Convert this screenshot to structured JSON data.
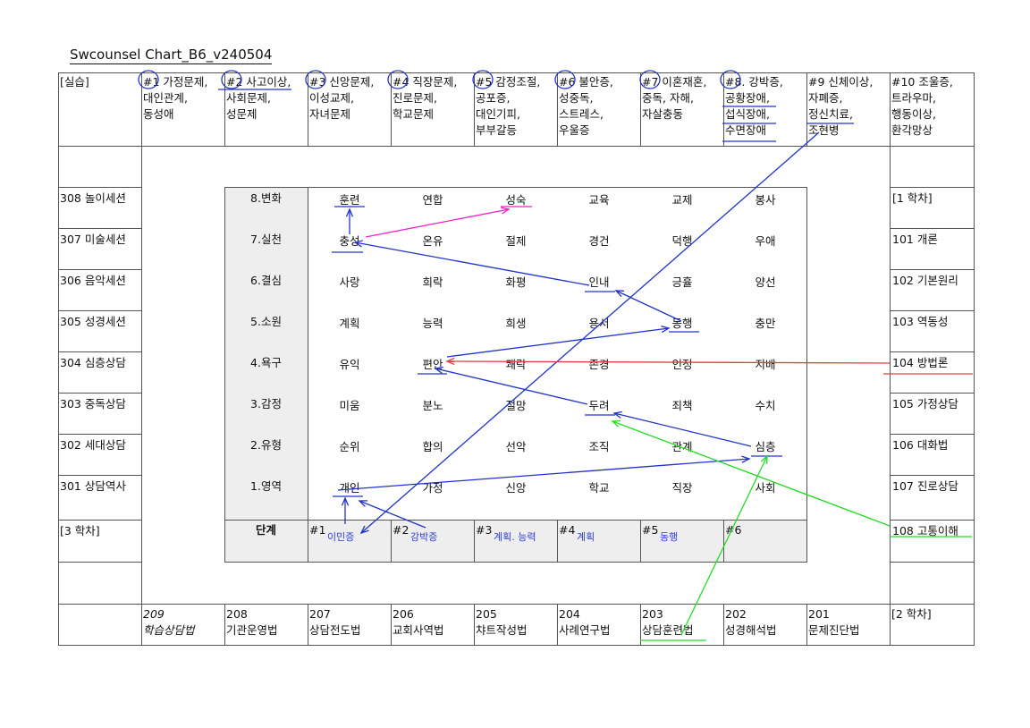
{
  "title": "Swcounsel Chart_B6_v240504",
  "top_row": [
    {
      "lines": [
        "[실습]"
      ]
    },
    {
      "lines": [
        "#1 가정문제,",
        "대인관계,",
        "동성애"
      ]
    },
    {
      "lines": [
        "#2 사고이상,",
        "사회문제,",
        "성문제"
      ]
    },
    {
      "lines": [
        "#3 신앙문제,",
        "이성교제,",
        "자녀문제"
      ]
    },
    {
      "lines": [
        "#4 직장문제,",
        "진로문제,",
        "학교문제"
      ]
    },
    {
      "lines": [
        "#5 감정조절,",
        "공포증,",
        "대인기피,",
        "부부갈등"
      ]
    },
    {
      "lines": [
        "#6 불안증,",
        "성중독,",
        "스트레스,",
        "우울증"
      ]
    },
    {
      "lines": [
        "#7 이혼재혼,",
        "중독, 자해,",
        "자살충동"
      ]
    },
    {
      "lines": [
        "#8. 강박증,",
        "공황장애,",
        "섭식장애,",
        "수면장애"
      ]
    },
    {
      "lines": [
        "#9 신체이상,",
        "자폐증,",
        "정신치료,",
        "조현병"
      ]
    },
    {
      "lines": [
        "#10 조울증,",
        "트라우마,",
        "행동이상,",
        "환각망상"
      ]
    }
  ],
  "left_col": [
    "308 놀이세션",
    "307 미술세션",
    "306 음악세션",
    "305 성경세션",
    "304 심층상담",
    "303 중독상담",
    "302 세대상담",
    "301 상담역사",
    "[3 학차]"
  ],
  "right_col": [
    "[1 학차]",
    "101 개론",
    "102 기본원리",
    "103 역동성",
    "104 방법론",
    "105 가정상담",
    "106 대화법",
    "107 진로상담",
    "108 고통이해"
  ],
  "bottom_row": [
    {
      "num": "209",
      "name": "학습상담법"
    },
    {
      "num": "208",
      "name": "기관운영법"
    },
    {
      "num": "207",
      "name": "상담전도법"
    },
    {
      "num": "206",
      "name": "교회사역법"
    },
    {
      "num": "205",
      "name": "챠트작성법"
    },
    {
      "num": "204",
      "name": "사례연구법"
    },
    {
      "num": "203",
      "name": "상담훈련법"
    },
    {
      "num": "202",
      "name": "성경해석법"
    },
    {
      "num": "201",
      "name": "문제진단법"
    },
    {
      "num": "[2 학차]",
      "name": ""
    }
  ],
  "stages": [
    {
      "label": "8.변화",
      "words": [
        "훈련",
        "연합",
        "성숙",
        "교육",
        "교제",
        "봉사"
      ]
    },
    {
      "label": "7.실천",
      "words": [
        "충성",
        "온유",
        "절제",
        "경건",
        "덕행",
        "우애"
      ]
    },
    {
      "label": "6.결심",
      "words": [
        "사랑",
        "희락",
        "화평",
        "인내",
        "긍휼",
        "양선"
      ]
    },
    {
      "label": "5.소원",
      "words": [
        "계획",
        "능력",
        "희생",
        "용서",
        "동행",
        "충만"
      ]
    },
    {
      "label": "4.욕구",
      "words": [
        "유익",
        "편안",
        "쾌락",
        "존경",
        "인정",
        "지배"
      ]
    },
    {
      "label": "3.감정",
      "words": [
        "미움",
        "분노",
        "절망",
        "두려",
        "죄책",
        "수치"
      ]
    },
    {
      "label": "2.유형",
      "words": [
        "순위",
        "합의",
        "선악",
        "조직",
        "관계",
        "심층"
      ]
    },
    {
      "label": "1.영역",
      "words": [
        "개인",
        "가정",
        "신앙",
        "학교",
        "직장",
        "사회"
      ]
    }
  ],
  "stage_header": "단계",
  "slots": [
    {
      "num": "#1",
      "note": "이민증"
    },
    {
      "num": "#2",
      "note": "강박증"
    },
    {
      "num": "#3",
      "note": "계획. 능력"
    },
    {
      "num": "#4",
      "note": "계획"
    },
    {
      "num": "#5",
      "note": "동행"
    },
    {
      "num": "#6",
      "note": ""
    }
  ],
  "colors": {
    "blue": "#2233cc",
    "red": "#e04040",
    "green": "#22dd22",
    "magenta": "#ee22cc"
  }
}
